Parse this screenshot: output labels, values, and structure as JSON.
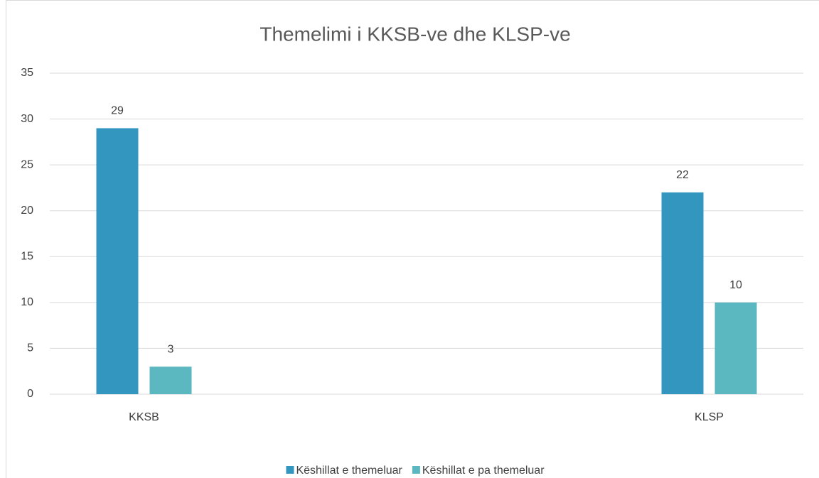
{
  "chart_data": {
    "type": "bar",
    "title": "Themelimi i KKSB-ve dhe KLSP-ve",
    "categories": [
      "KKSB",
      "KLSP"
    ],
    "series": [
      {
        "name": "Këshillat e themeluar",
        "color": "#3396bf",
        "values": [
          29,
          22
        ]
      },
      {
        "name": "Këshillat e pa themeluar",
        "color": "#5bb7c0",
        "values": [
          3,
          10
        ]
      }
    ],
    "ylim": [
      0,
      35
    ],
    "yticks": [
      0,
      5,
      10,
      15,
      20,
      25,
      30,
      35
    ],
    "grid": true,
    "legend": "bottom"
  }
}
